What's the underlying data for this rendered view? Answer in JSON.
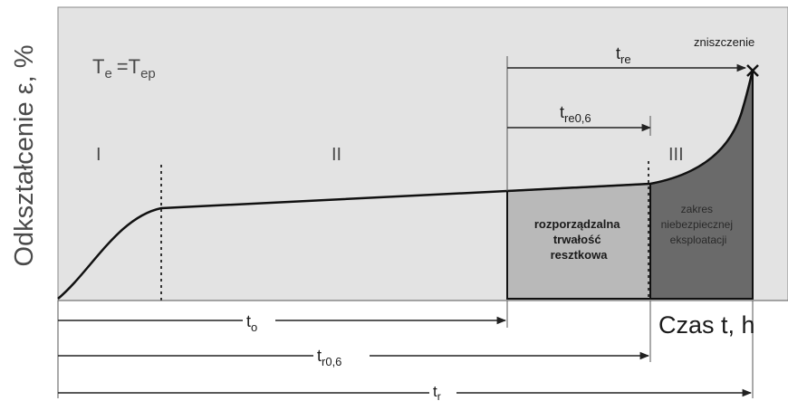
{
  "y_axis_label": "Odkształcenie ε, %",
  "x_axis_label": "Czas t, h",
  "condition": {
    "main": "T",
    "sub1": "e",
    "eq": "=T",
    "sub2": "ep"
  },
  "stages": [
    "I",
    "II",
    "III"
  ],
  "failure_label": "zniszczenie",
  "region_residual": [
    "rozporządzalna",
    "trwałość",
    "resztkowa"
  ],
  "region_danger": [
    "zakres",
    "niebezpiecznej",
    "eksploatacji"
  ],
  "intervals": {
    "tre": {
      "main": "t",
      "sub": "re"
    },
    "tre06": {
      "main": "t",
      "sub": "re0,6"
    },
    "to": {
      "main": "t",
      "sub": "o"
    },
    "tr06": {
      "main": "t",
      "sub": "r0,6"
    },
    "tr": {
      "main": "t",
      "sub": "r"
    }
  },
  "colors": {
    "plot_bg": "#e3e3e3",
    "region_residual": "#b9b9b9",
    "region_danger": "#6a6a6a",
    "curve": "#1a1a1a"
  }
}
